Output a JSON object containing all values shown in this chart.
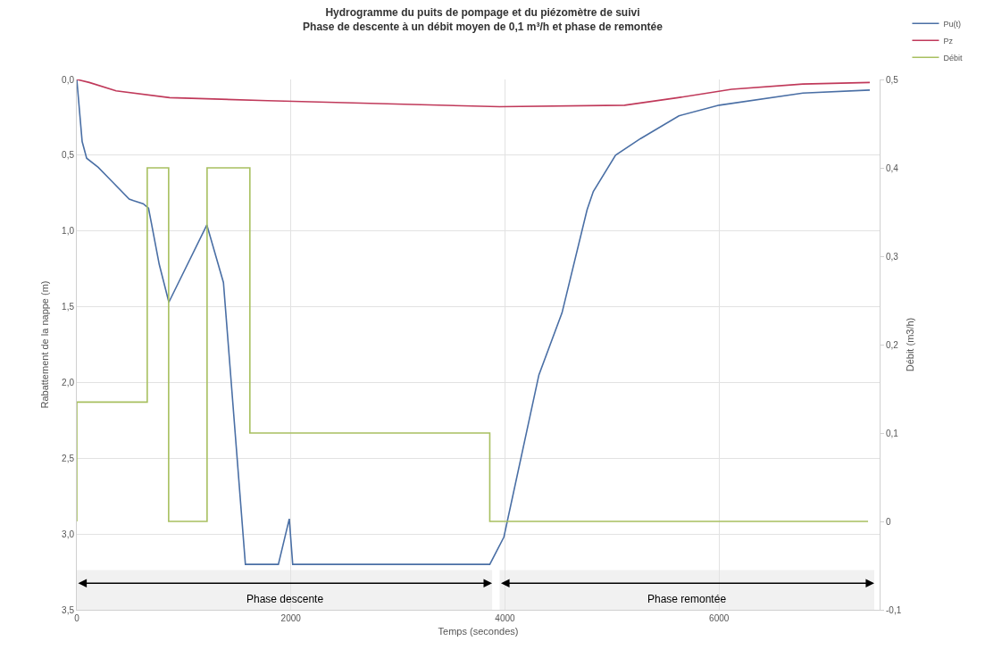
{
  "chart_data": {
    "type": "line",
    "title": "Hydrogramme du puits de pompage et du piézomètre de suivi",
    "subtitle": "Phase de descente à un débit moyen de 0,1 m³/h et phase de remontée",
    "xlabel": "Temps (secondes)",
    "ylabel": "Rabattement de la nappe (m)",
    "y2label": "Débit (m3/h)",
    "xlim": [
      0,
      7500
    ],
    "xticks": [
      0,
      2000,
      4000,
      6000
    ],
    "ylim": [
      3.5,
      0
    ],
    "yticks": [
      {
        "value": 0,
        "label": "0,0"
      },
      {
        "value": 0.5,
        "label": "0,5"
      },
      {
        "value": 1,
        "label": "1,0"
      },
      {
        "value": 1.5,
        "label": "1,5"
      },
      {
        "value": 2,
        "label": "2,0"
      },
      {
        "value": 2.5,
        "label": "2,5"
      },
      {
        "value": 3,
        "label": "3,0"
      },
      {
        "value": 3.5,
        "label": "3,5"
      }
    ],
    "y2lim": [
      -0.1,
      0.5
    ],
    "y2ticks": [
      {
        "value": -0.1,
        "label": "-0,1"
      },
      0,
      {
        "value": 0.1,
        "label": "0,1"
      },
      {
        "value": 0.2,
        "label": "0,2"
      },
      {
        "value": 0.3,
        "label": "0,3"
      },
      {
        "value": 0.4,
        "label": "0,4"
      },
      {
        "value": 0.5,
        "label": "0,5"
      }
    ],
    "grid": true,
    "legend": "top right",
    "marker": "none",
    "line_style": "solid",
    "series": [
      {
        "name": "Pu(t)",
        "color": "#4a6fa5",
        "x": [
          0,
          50,
          92,
          200,
          325,
          490,
          530,
          620,
          670,
          700,
          770,
          860,
          1215,
          1370,
          1575,
          1883,
          1985,
          2017,
          3858,
          3990,
          4317,
          4533,
          4767,
          4825,
          5033,
          5267,
          5625,
          6000,
          6783,
          7408
        ],
        "values": [
          0,
          0.41,
          0.52,
          0.58,
          0.67,
          0.79,
          0.8,
          0.82,
          0.85,
          0.96,
          1.22,
          1.47,
          0.96,
          1.34,
          3.2,
          3.2,
          2.9,
          3.2,
          3.2,
          3.02,
          1.95,
          1.54,
          0.86,
          0.74,
          0.5,
          0.39,
          0.24,
          0.17,
          0.09,
          0.07
        ]
      },
      {
        "name": "Pz",
        "color": "#c0395a",
        "x": [
          0,
          117,
          367,
          867,
          1783,
          3950,
          5117,
          5617,
          6117,
          6783,
          7408
        ],
        "values": [
          0,
          0.02,
          0.075,
          0.12,
          0.14,
          0.18,
          0.17,
          0.12,
          0.065,
          0.03,
          0.02
        ]
      },
      {
        "name": "Débit",
        "type": "step",
        "axis": "y2",
        "color": "#a8c060",
        "x": [
          0,
          0,
          658,
          858,
          1217,
          1617,
          3858,
          7392
        ],
        "values": [
          0,
          0.135,
          0.4,
          0,
          0.4,
          0.1,
          0,
          0
        ]
      }
    ],
    "bands": [
      {
        "axis": "x",
        "from": 0,
        "to": 3880,
        "label": "Phase descente"
      },
      {
        "axis": "x",
        "from": 3950,
        "to": 7450,
        "label": "Phase remontée"
      }
    ]
  }
}
